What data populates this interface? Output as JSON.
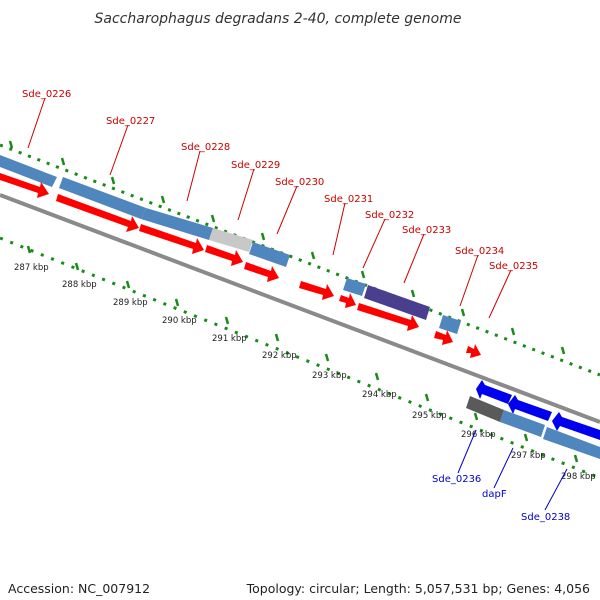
{
  "title": "Saccharophagus degradans 2-40, complete genome",
  "footer": {
    "accession": "Accession: NC_007912",
    "topology": "Topology: circular; Length: 5,057,531 bp; Genes: 4,056"
  },
  "colors": {
    "forward_cds": "#ff0000",
    "reverse_cds": "#0000ee",
    "gene_blue": "#4f86bd",
    "gene_grey": "#c8c8c8",
    "gene_purple": "#4a3f8f",
    "gene_dark": "#5a5a5a",
    "backbone": "#8a8a8a",
    "tick_green": "#1a8a1a",
    "label_forward": "#cc0000",
    "label_reverse": "#0000cc"
  },
  "ticks": [
    "287 kbp",
    "288 kbp",
    "289 kbp",
    "290 kbp",
    "291 kbp",
    "292 kbp",
    "293 kbp",
    "294 kbp",
    "295 kbp",
    "296 kbp",
    "297 kbp",
    "298 kbp"
  ],
  "genes_top": [
    "Sde_0226",
    "Sde_0227",
    "Sde_0228",
    "Sde_0229",
    "Sde_0230",
    "Sde_0231",
    "Sde_0232",
    "Sde_0233",
    "Sde_0234",
    "Sde_0235"
  ],
  "genes_bottom": [
    "Sde_0236",
    "dapF",
    "Sde_0238"
  ]
}
